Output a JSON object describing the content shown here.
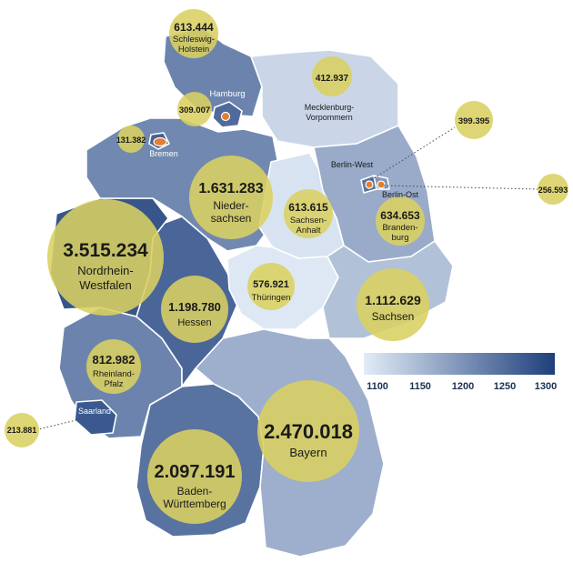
{
  "legend": {
    "ticks": [
      "1100",
      "1150",
      "1200",
      "1250",
      "1300"
    ],
    "scale_min": 1100,
    "scale_max": 1300,
    "color_low": "#e2ecf7",
    "color_high": "#1e3f7c"
  },
  "states": [
    {
      "id": "sh",
      "name_lines": [
        "Schleswig-",
        "Holstein"
      ],
      "value": "613.444",
      "shade": 1220
    },
    {
      "id": "hh",
      "name_lines": [
        "Hamburg"
      ],
      "value": "309.007",
      "shade": 1250
    },
    {
      "id": "mv",
      "name_lines": [
        "Mecklenburg-",
        "Vorpommern"
      ],
      "value": "412.937",
      "shade": 1125
    },
    {
      "id": "hb",
      "name_lines": [
        "Bremen"
      ],
      "value": "131.382",
      "shade": 1260
    },
    {
      "id": "ni",
      "name_lines": [
        "Nieder-",
        "sachsen"
      ],
      "value": "1.631.283",
      "shade": 1215
    },
    {
      "id": "be",
      "name_lines": [
        "Berlin-West"
      ],
      "value": "399.395",
      "shade": 1240
    },
    {
      "id": "bo",
      "name_lines": [
        "Berlin-Ost"
      ],
      "value": "256.593",
      "shade": 1200
    },
    {
      "id": "bb",
      "name_lines": [
        "Branden-",
        "burg"
      ],
      "value": "634.653",
      "shade": 1175
    },
    {
      "id": "st",
      "name_lines": [
        "Sachsen-",
        "Anhalt"
      ],
      "value": "613.615",
      "shade": 1110
    },
    {
      "id": "nw",
      "name_lines": [
        "Nordrhein-",
        "Westfalen"
      ],
      "value": "3.515.234",
      "shade": 1275
    },
    {
      "id": "he",
      "name_lines": [
        "Hessen"
      ],
      "value": "1.198.780",
      "shade": 1255
    },
    {
      "id": "th",
      "name_lines": [
        "Thüringen"
      ],
      "value": "576.921",
      "shade": 1105
    },
    {
      "id": "sn",
      "name_lines": [
        "Sachsen"
      ],
      "value": "1.112.629",
      "shade": 1150
    },
    {
      "id": "rp",
      "name_lines": [
        "Rheinland-",
        "Pfalz"
      ],
      "value": "812.982",
      "shade": 1220
    },
    {
      "id": "sl",
      "name_lines": [
        "Saarland"
      ],
      "value": "213.881",
      "shade": 1270
    },
    {
      "id": "bw",
      "name_lines": [
        "Baden-",
        "Württemberg"
      ],
      "value": "2.097.191",
      "shade": 1240
    },
    {
      "id": "by",
      "name_lines": [
        "Bayern"
      ],
      "value": "2.470.018",
      "shade": 1170
    }
  ]
}
